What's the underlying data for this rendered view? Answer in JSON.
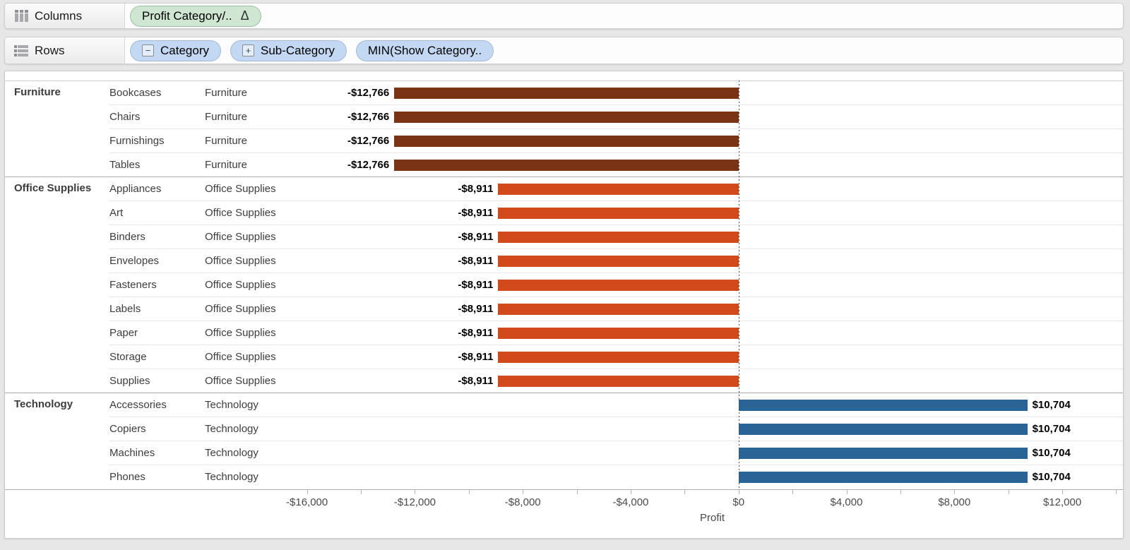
{
  "shelves": {
    "columns": {
      "label": "Columns",
      "icon": "columns-icon",
      "pills": [
        {
          "text": "Profit Category/..",
          "suffix": "Δ",
          "style": "green",
          "name": "pill-profit-category"
        }
      ]
    },
    "rows": {
      "label": "Rows",
      "icon": "rows-icon",
      "pills": [
        {
          "box": "−",
          "text": "Category",
          "style": "blue",
          "name": "pill-category"
        },
        {
          "box": "+",
          "text": "Sub-Category",
          "style": "blue",
          "name": "pill-sub-category"
        },
        {
          "text": "MIN(Show Category..",
          "style": "blue",
          "name": "pill-min-show-category"
        }
      ]
    }
  },
  "chart_data": {
    "type": "bar",
    "orientation": "horizontal",
    "xlabel": "Profit",
    "zero_reference_line": true,
    "axis": {
      "min": -16200,
      "max": 14250,
      "ticks": [
        {
          "value": -16000,
          "label": "-$16,000"
        },
        {
          "value": -14000,
          "label": ""
        },
        {
          "value": -12000,
          "label": "-$12,000"
        },
        {
          "value": -10000,
          "label": ""
        },
        {
          "value": -8000,
          "label": "-$8,000"
        },
        {
          "value": -6000,
          "label": ""
        },
        {
          "value": -4000,
          "label": "-$4,000"
        },
        {
          "value": -2000,
          "label": ""
        },
        {
          "value": 0,
          "label": "$0"
        },
        {
          "value": 2000,
          "label": ""
        },
        {
          "value": 4000,
          "label": "$4,000"
        },
        {
          "value": 6000,
          "label": ""
        },
        {
          "value": 8000,
          "label": "$8,000"
        },
        {
          "value": 10000,
          "label": ""
        },
        {
          "value": 12000,
          "label": "$12,000"
        },
        {
          "value": 14000,
          "label": ""
        }
      ]
    },
    "colors": {
      "Furniture": "#7B3315",
      "Office Supplies": "#D2491B",
      "Technology": "#2A6396"
    },
    "groups": [
      {
        "category": "Furniture",
        "rows": [
          {
            "sub": "Bookcases",
            "cat": "Furniture",
            "value": -12766,
            "label": "-$12,766"
          },
          {
            "sub": "Chairs",
            "cat": "Furniture",
            "value": -12766,
            "label": "-$12,766"
          },
          {
            "sub": "Furnishings",
            "cat": "Furniture",
            "value": -12766,
            "label": "-$12,766"
          },
          {
            "sub": "Tables",
            "cat": "Furniture",
            "value": -12766,
            "label": "-$12,766"
          }
        ]
      },
      {
        "category": "Office Supplies",
        "rows": [
          {
            "sub": "Appliances",
            "cat": "Office Supplies",
            "value": -8911,
            "label": "-$8,911"
          },
          {
            "sub": "Art",
            "cat": "Office Supplies",
            "value": -8911,
            "label": "-$8,911"
          },
          {
            "sub": "Binders",
            "cat": "Office Supplies",
            "value": -8911,
            "label": "-$8,911"
          },
          {
            "sub": "Envelopes",
            "cat": "Office Supplies",
            "value": -8911,
            "label": "-$8,911"
          },
          {
            "sub": "Fasteners",
            "cat": "Office Supplies",
            "value": -8911,
            "label": "-$8,911"
          },
          {
            "sub": "Labels",
            "cat": "Office Supplies",
            "value": -8911,
            "label": "-$8,911"
          },
          {
            "sub": "Paper",
            "cat": "Office Supplies",
            "value": -8911,
            "label": "-$8,911"
          },
          {
            "sub": "Storage",
            "cat": "Office Supplies",
            "value": -8911,
            "label": "-$8,911"
          },
          {
            "sub": "Supplies",
            "cat": "Office Supplies",
            "value": -8911,
            "label": "-$8,911"
          }
        ]
      },
      {
        "category": "Technology",
        "rows": [
          {
            "sub": "Accessories",
            "cat": "Technology",
            "value": 10704,
            "label": "$10,704"
          },
          {
            "sub": "Copiers",
            "cat": "Technology",
            "value": 10704,
            "label": "$10,704"
          },
          {
            "sub": "Machines",
            "cat": "Technology",
            "value": 10704,
            "label": "$10,704"
          },
          {
            "sub": "Phones",
            "cat": "Technology",
            "value": 10704,
            "label": "$10,704"
          }
        ]
      }
    ]
  }
}
